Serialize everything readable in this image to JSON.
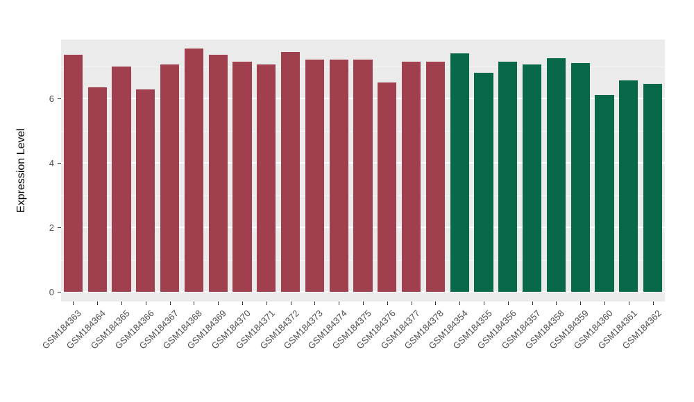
{
  "chart_data": {
    "type": "bar",
    "title": "",
    "xlabel": "",
    "ylabel": "Expression Level",
    "ylim": [
      0,
      7.8
    ],
    "yticks": [
      0,
      2,
      4,
      6
    ],
    "yticks_minor": [
      1,
      3,
      5,
      7
    ],
    "grid": "on",
    "legend": "none",
    "panel_background": "#EBEBEB",
    "colors": {
      "group1": "#A0404F",
      "group2": "#07694A"
    },
    "bars": [
      {
        "label": "GSM184363",
        "value": 7.35,
        "group": "group1"
      },
      {
        "label": "GSM184364",
        "value": 6.35,
        "group": "group1"
      },
      {
        "label": "GSM184365",
        "value": 7.0,
        "group": "group1"
      },
      {
        "label": "GSM184366",
        "value": 6.28,
        "group": "group1"
      },
      {
        "label": "GSM184367",
        "value": 7.05,
        "group": "group1"
      },
      {
        "label": "GSM184368",
        "value": 7.55,
        "group": "group1"
      },
      {
        "label": "GSM184369",
        "value": 7.35,
        "group": "group1"
      },
      {
        "label": "GSM184370",
        "value": 7.15,
        "group": "group1"
      },
      {
        "label": "GSM184371",
        "value": 7.05,
        "group": "group1"
      },
      {
        "label": "GSM184372",
        "value": 7.45,
        "group": "group1"
      },
      {
        "label": "GSM184373",
        "value": 7.2,
        "group": "group1"
      },
      {
        "label": "GSM184374",
        "value": 7.2,
        "group": "group1"
      },
      {
        "label": "GSM184375",
        "value": 7.2,
        "group": "group1"
      },
      {
        "label": "GSM184376",
        "value": 6.5,
        "group": "group1"
      },
      {
        "label": "GSM184377",
        "value": 7.15,
        "group": "group1"
      },
      {
        "label": "GSM184378",
        "value": 7.15,
        "group": "group1"
      },
      {
        "label": "GSM184354",
        "value": 7.4,
        "group": "group2"
      },
      {
        "label": "GSM184355",
        "value": 6.8,
        "group": "group2"
      },
      {
        "label": "GSM184356",
        "value": 7.15,
        "group": "group2"
      },
      {
        "label": "GSM184357",
        "value": 7.05,
        "group": "group2"
      },
      {
        "label": "GSM184358",
        "value": 7.25,
        "group": "group2"
      },
      {
        "label": "GSM184359",
        "value": 7.1,
        "group": "group2"
      },
      {
        "label": "GSM184360",
        "value": 6.1,
        "group": "group2"
      },
      {
        "label": "GSM184361",
        "value": 6.55,
        "group": "group2"
      },
      {
        "label": "GSM184362",
        "value": 6.45,
        "group": "group2"
      }
    ]
  }
}
